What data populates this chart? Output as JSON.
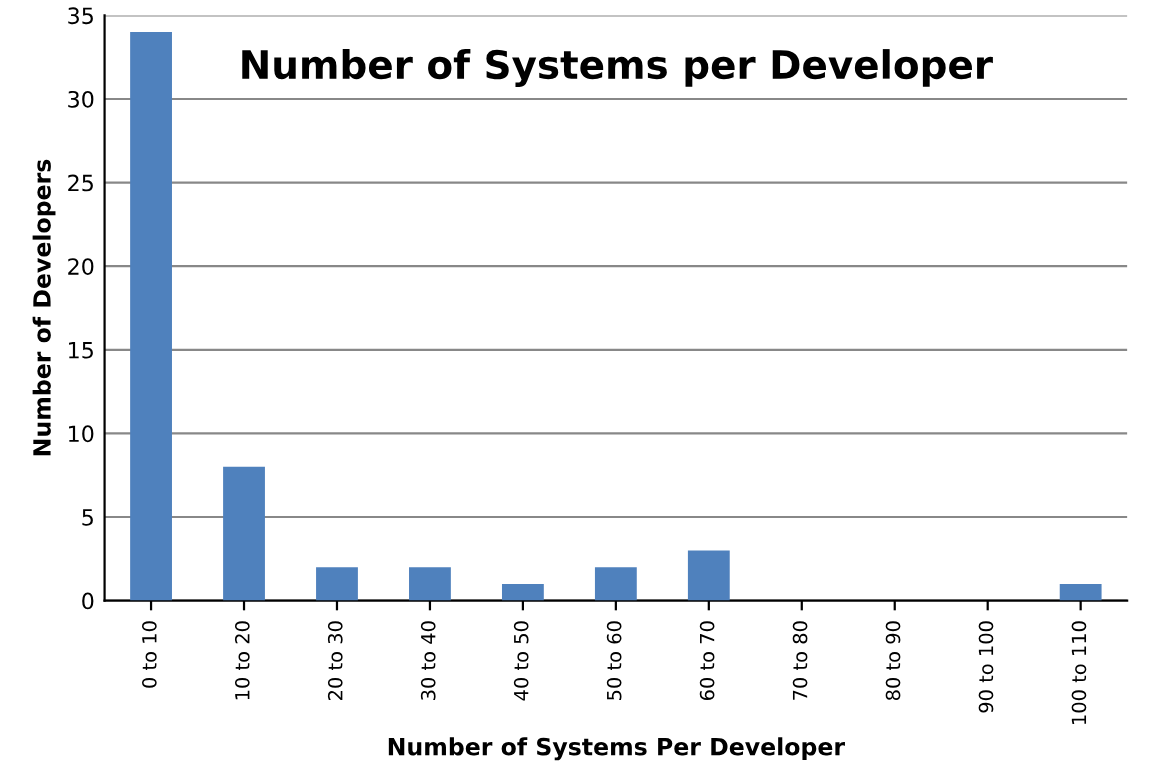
{
  "chart_data": {
    "type": "bar",
    "title": "Number of Systems per Developer",
    "xlabel": "Number of Systems Per Developer",
    "ylabel": "Number of Developers",
    "categories": [
      "0 to 10",
      "10 to 20",
      "20 to 30",
      "30 to 40",
      "40 to 50",
      "50 to 60",
      "60 to 70",
      "70 to 80",
      "80 to 90",
      "90 to 100",
      "100 to 110"
    ],
    "values": [
      34,
      8,
      2,
      2,
      1,
      2,
      3,
      0,
      0,
      0,
      1
    ],
    "color": "#4f81bd",
    "ylim": [
      0,
      35
    ],
    "yticks": [
      0,
      5,
      10,
      15,
      20,
      25,
      30,
      35
    ],
    "grid": "y",
    "legend": false
  }
}
